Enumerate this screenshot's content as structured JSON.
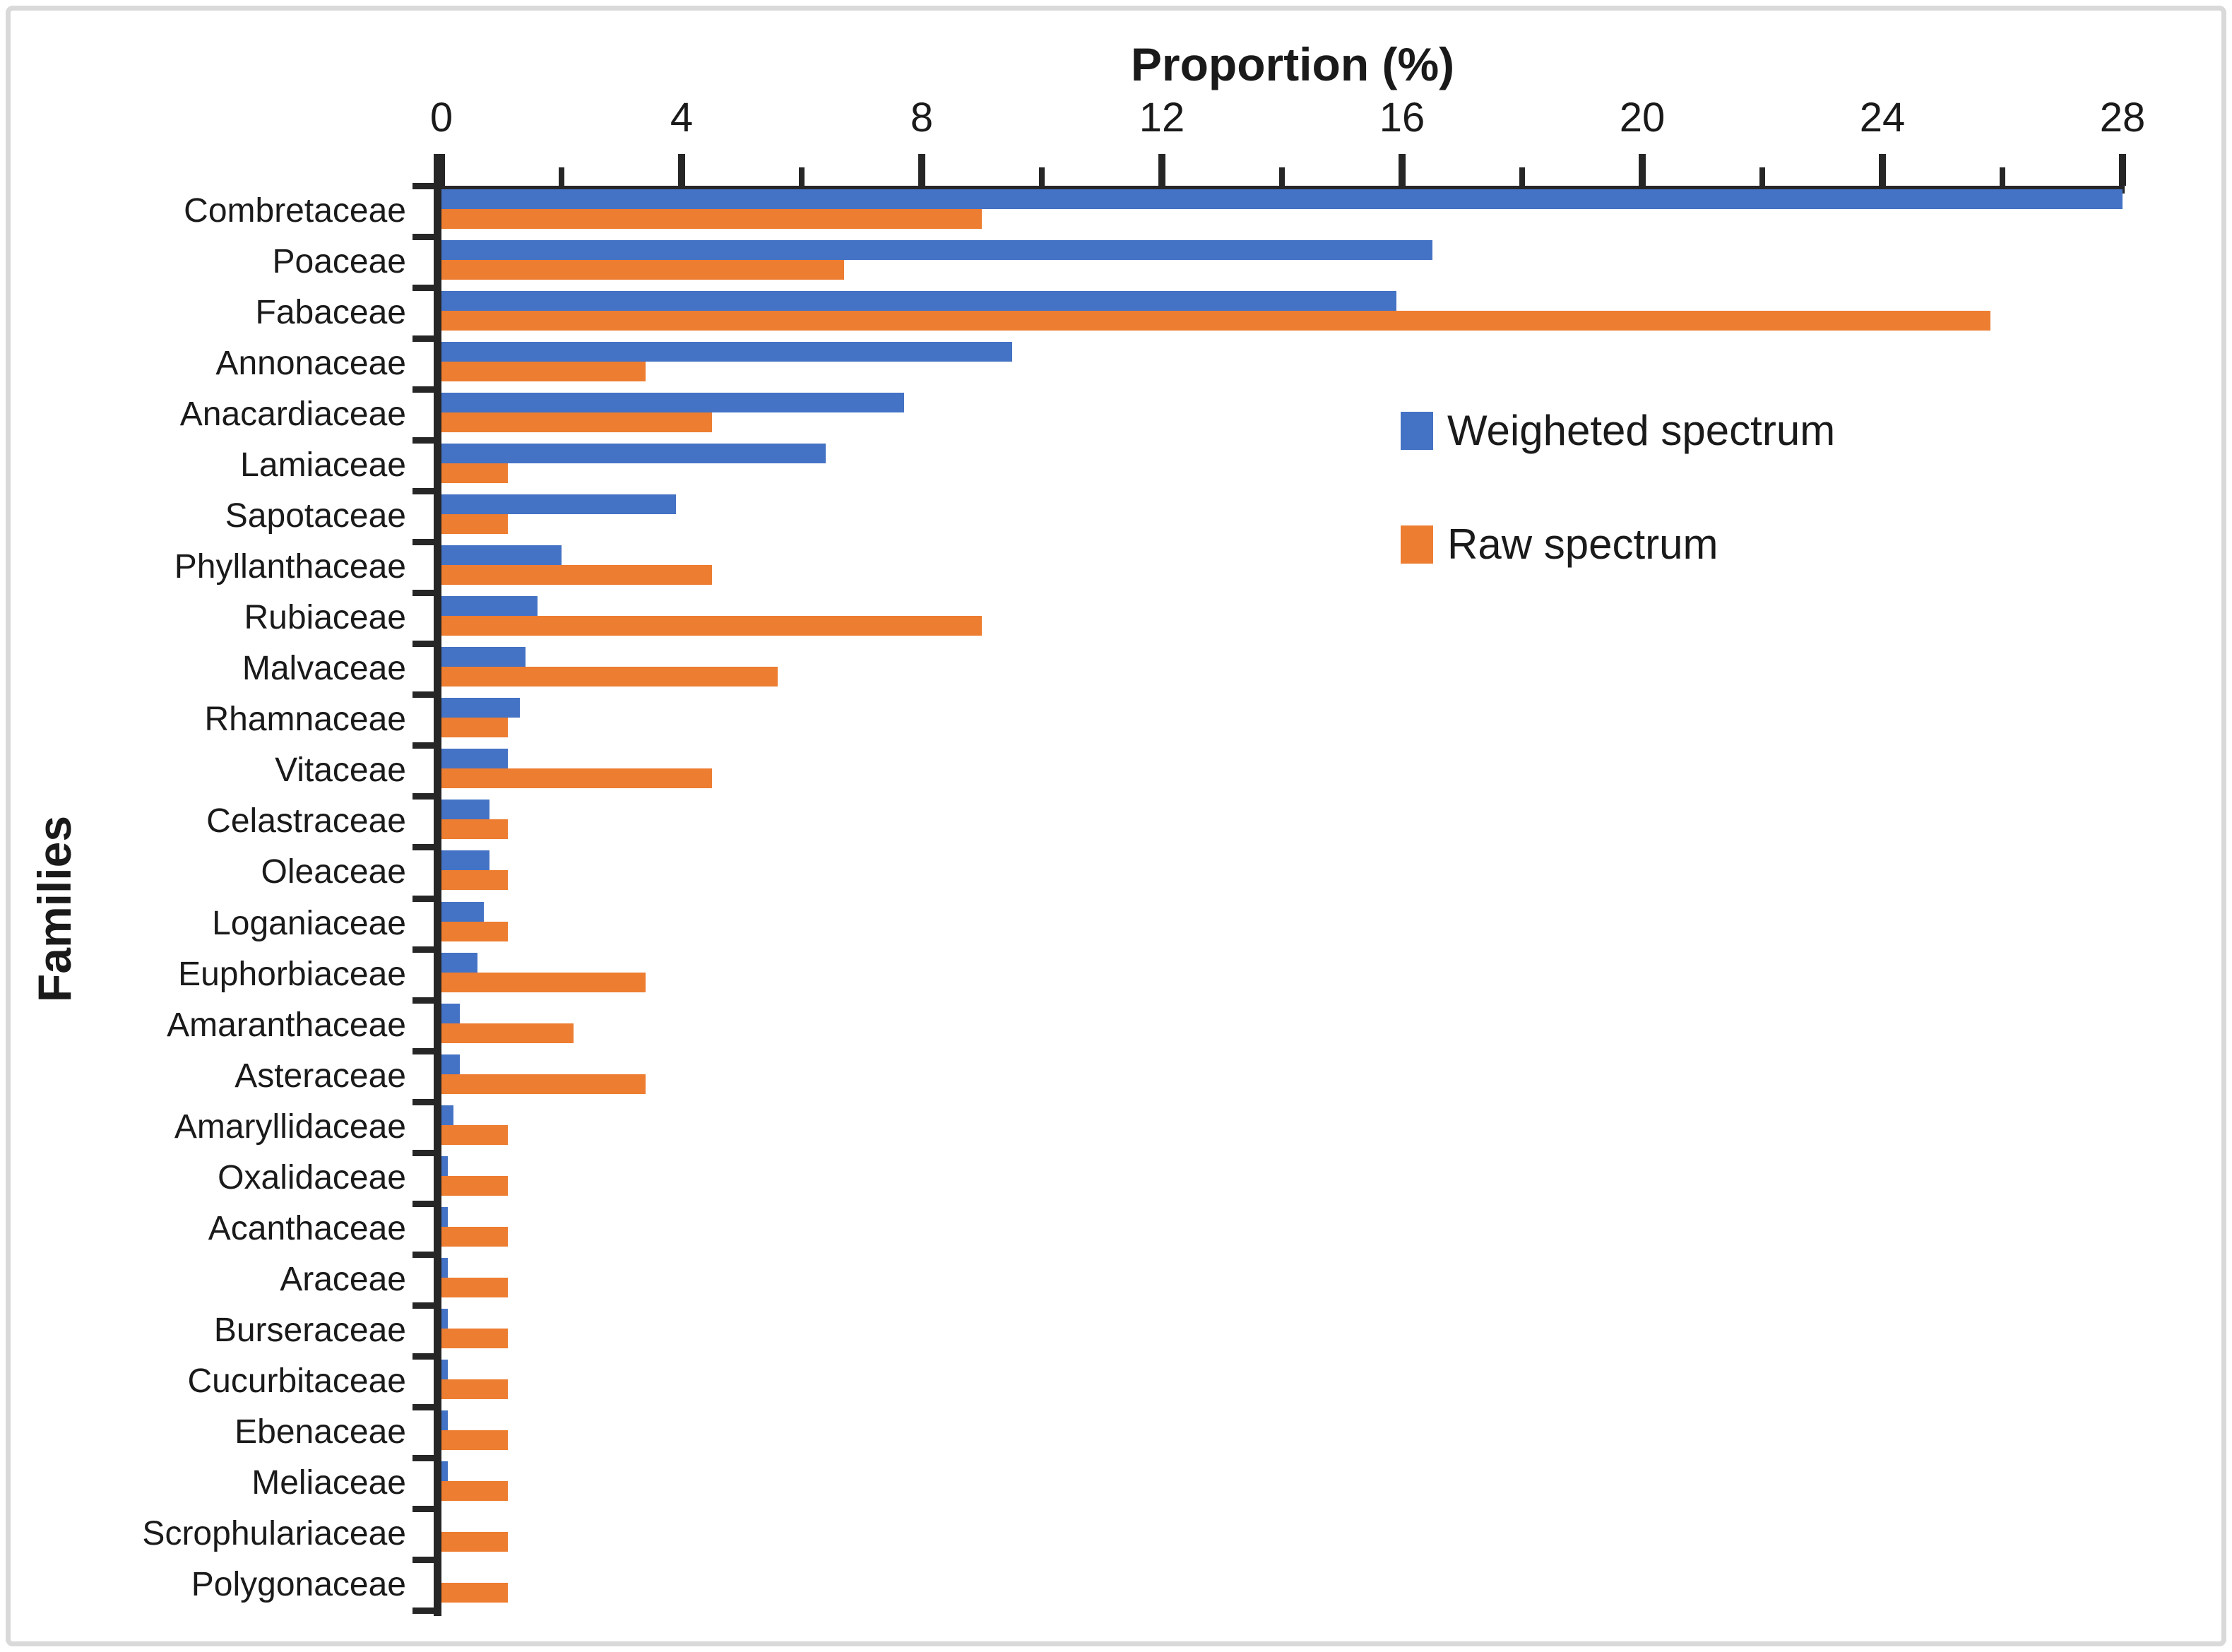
{
  "figure": {
    "background": "#ffffff",
    "frame_color": "#d9d9d9",
    "text_color": "#1a1a1a"
  },
  "chart_data": {
    "type": "bar",
    "orientation": "horizontal",
    "xlabel": "Proportion (%)",
    "ylabel": "Families",
    "x_axis": {
      "min": 0,
      "max": 28,
      "major_tick_step": 4,
      "minor_tick_step": 2,
      "tick_labels": [
        "0",
        "4",
        "8",
        "12",
        "16",
        "20",
        "24",
        "28"
      ],
      "position": "top",
      "grid": false
    },
    "legend": {
      "position": "center-right",
      "entries": [
        {
          "label": "Weigheted spectrum",
          "color": "#4472C4"
        },
        {
          "label": "Raw spectrum",
          "color": "#ED7D31"
        }
      ]
    },
    "categories": [
      "Combretaceae",
      "Poaceae",
      "Fabaceae",
      "Annonaceae",
      "Anacardiaceae",
      "Lamiaceae",
      "Sapotaceae",
      "Phyllanthaceae",
      "Rubiaceae",
      "Malvaceae",
      "Rhamnaceae",
      "Vitaceae",
      "Celastraceae",
      "Oleaceae",
      "Loganiaceae",
      "Euphorbiaceae",
      "Amaranthaceae",
      "Asteraceae",
      "Amaryllidaceae",
      "Oxalidaceae",
      "Acanthaceae",
      "Araceae",
      "Burseraceae",
      "Cucurbitaceae",
      "Ebenaceae",
      "Meliaceae",
      "Scrophulariaceae",
      "Polygonaceae"
    ],
    "series": [
      {
        "name": "Weigheted spectrum",
        "color": "#4472C4",
        "values": [
          28.0,
          16.5,
          15.9,
          9.5,
          7.7,
          6.4,
          3.9,
          2.0,
          1.6,
          1.4,
          1.3,
          1.1,
          0.8,
          0.8,
          0.7,
          0.6,
          0.3,
          0.3,
          0.2,
          0.1,
          0.1,
          0.1,
          0.1,
          0.1,
          0.1,
          0.1,
          0.0,
          0.0
        ]
      },
      {
        "name": "Raw spectrum",
        "color": "#ED7D31",
        "values": [
          9.0,
          6.7,
          25.8,
          3.4,
          4.5,
          1.1,
          1.1,
          4.5,
          9.0,
          5.6,
          1.1,
          4.5,
          1.1,
          1.1,
          1.1,
          3.4,
          2.2,
          3.4,
          1.1,
          1.1,
          1.1,
          1.1,
          1.1,
          1.1,
          1.1,
          1.1,
          1.1,
          1.1
        ]
      }
    ]
  }
}
